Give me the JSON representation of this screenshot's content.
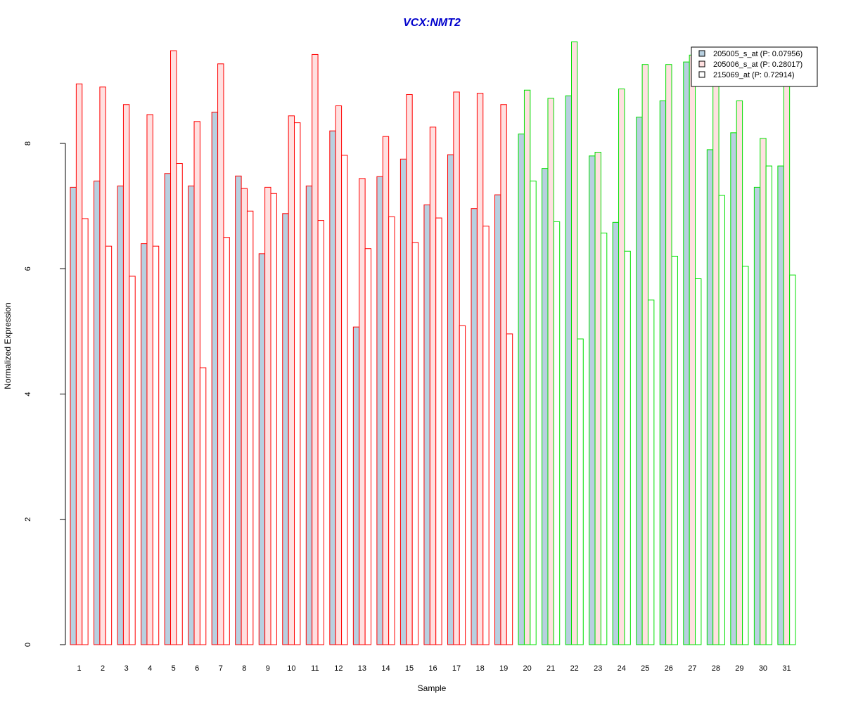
{
  "chart_data": {
    "type": "bar",
    "title": "VCX:NMT2",
    "xlabel": "Sample",
    "ylabel": "Normalized Expression",
    "ylim": [
      0,
      9.5
    ],
    "yticks": [
      0,
      2,
      4,
      6,
      8
    ],
    "categories": [
      "1",
      "2",
      "3",
      "4",
      "5",
      "6",
      "7",
      "8",
      "9",
      "10",
      "11",
      "12",
      "13",
      "14",
      "15",
      "16",
      "17",
      "18",
      "19",
      "20",
      "21",
      "22",
      "23",
      "24",
      "25",
      "26",
      "27",
      "28",
      "29",
      "30",
      "31"
    ],
    "group_split_after": 19,
    "group_colors": {
      "group1_border": "#ff0000",
      "group2_border": "#00e000"
    },
    "legend_position": "top-right",
    "series": [
      {
        "name": "205005_s_at (P: 0.07956)",
        "fill": "#b8d0e0",
        "values": [
          7.3,
          7.4,
          7.32,
          6.4,
          7.52,
          7.32,
          8.5,
          7.48,
          6.24,
          6.88,
          7.32,
          8.2,
          5.07,
          7.47,
          7.75,
          7.02,
          7.82,
          6.96,
          7.18,
          8.15,
          7.6,
          8.76,
          7.8,
          6.74,
          8.42,
          8.68,
          9.3,
          7.9,
          8.17,
          7.3,
          7.64
        ]
      },
      {
        "name": "205006_s_at (P: 0.28017)",
        "fill": "#ffe0e0",
        "values": [
          8.95,
          8.9,
          8.62,
          8.46,
          9.48,
          8.35,
          9.27,
          7.28,
          7.3,
          8.44,
          9.42,
          8.6,
          7.44,
          8.11,
          8.78,
          8.26,
          8.82,
          8.8,
          8.62,
          8.85,
          8.72,
          9.62,
          7.86,
          8.87,
          9.26,
          9.26,
          9.41,
          9.2,
          8.68,
          8.08,
          9.2
        ]
      },
      {
        "name": "215069_at (P: 0.72914)",
        "fill": "#ffffff",
        "values": [
          6.8,
          6.36,
          5.88,
          6.36,
          7.68,
          4.42,
          6.5,
          6.92,
          7.2,
          8.33,
          6.77,
          7.81,
          6.32,
          6.83,
          6.42,
          6.81,
          5.09,
          6.68,
          4.96,
          7.4,
          6.75,
          4.88,
          6.57,
          6.28,
          5.5,
          6.2,
          5.84,
          7.17,
          6.04,
          7.64,
          5.9
        ]
      }
    ]
  }
}
